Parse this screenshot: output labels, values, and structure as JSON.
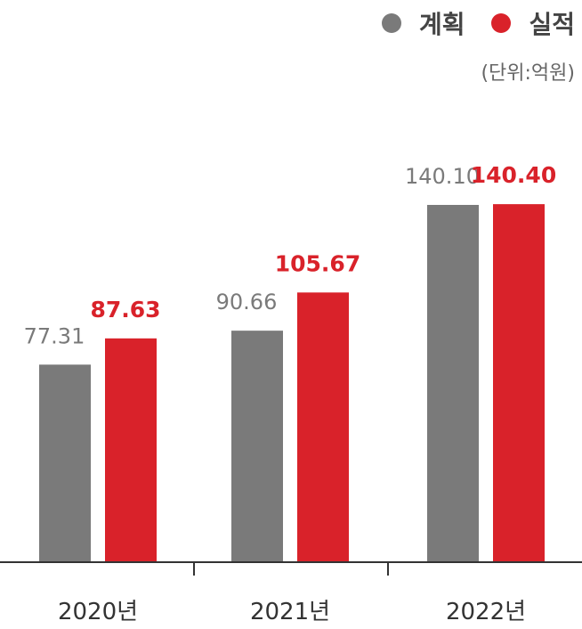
{
  "legend": {
    "unit": "(단위:억원)"
  },
  "colors": {
    "plan": "#7a7a7a",
    "actual": "#d9222a",
    "axis": "#333333"
  },
  "chart_data": {
    "type": "bar",
    "categories": [
      "2020년",
      "2021년",
      "2022년"
    ],
    "series": [
      {
        "name": "계획",
        "values": [
          77.31,
          90.66,
          140.1
        ],
        "labels": [
          "77.31",
          "90.66",
          "140.10"
        ]
      },
      {
        "name": "실적",
        "values": [
          87.63,
          105.67,
          140.4
        ],
        "labels": [
          "87.63",
          "105.67",
          "140.40"
        ]
      }
    ],
    "ylim": [
      0,
      160
    ],
    "legend_position": "top-right",
    "grid": false
  }
}
